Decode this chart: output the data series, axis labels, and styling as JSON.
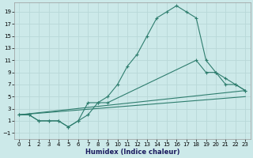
{
  "xlabel": "Humidex (Indice chaleur)",
  "background_color": "#cce9e9",
  "grid_color": "#b8d8d8",
  "line_color": "#2e7d6e",
  "xlim": [
    -0.5,
    23.5
  ],
  "ylim": [
    -2,
    20.5
  ],
  "xticks": [
    0,
    1,
    2,
    3,
    4,
    5,
    6,
    7,
    8,
    9,
    10,
    11,
    12,
    13,
    14,
    15,
    16,
    17,
    18,
    19,
    20,
    21,
    22,
    23
  ],
  "yticks": [
    -1,
    1,
    3,
    5,
    7,
    9,
    11,
    13,
    15,
    17,
    19
  ],
  "line1_x": [
    0,
    1,
    2,
    3,
    4,
    5,
    6,
    7,
    8,
    9,
    10,
    11,
    12,
    13,
    14,
    15,
    16,
    17,
    18,
    19,
    20,
    21,
    22,
    23
  ],
  "line1_y": [
    2,
    2,
    1,
    1,
    1,
    0,
    1,
    2,
    4,
    5,
    7,
    10,
    12,
    15,
    18,
    19,
    20,
    19,
    18,
    11,
    9,
    7,
    7,
    6
  ],
  "line2_x": [
    0,
    1,
    2,
    3,
    4,
    5,
    6,
    7,
    8,
    9,
    18,
    19,
    20,
    21,
    22,
    23
  ],
  "line2_y": [
    2,
    2,
    1,
    1,
    1,
    0,
    1,
    4,
    4,
    4,
    11,
    9,
    9,
    8,
    7,
    6
  ],
  "line3_x": [
    0,
    23
  ],
  "line3_y": [
    2,
    6
  ],
  "line4_x": [
    0,
    23
  ],
  "line4_y": [
    2,
    5
  ]
}
